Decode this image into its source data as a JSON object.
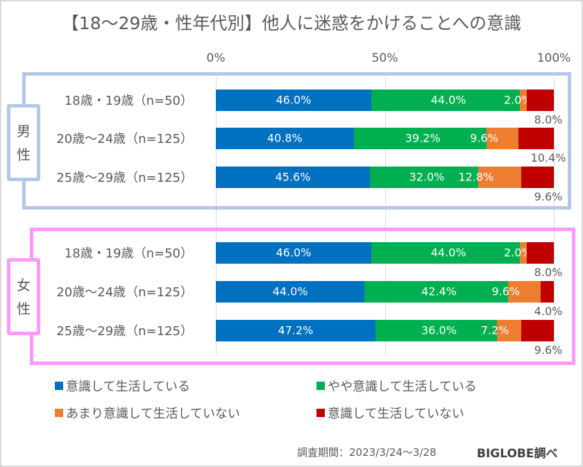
{
  "chart_data": {
    "type": "bar",
    "orientation": "horizontal",
    "stacked": "100%",
    "title": "【18～29歳・性年代別】他人に迷惑をかけることへの意識",
    "xlabel": "",
    "ylabel": "",
    "xlim": [
      0,
      100
    ],
    "x_ticks": [
      "0%",
      "50%",
      "100%"
    ],
    "grid": true,
    "legend_position": "bottom",
    "groups": [
      {
        "name": "男性",
        "label_chars": [
          "男",
          "性"
        ],
        "color": "#b4c7e7"
      },
      {
        "name": "女性",
        "label_chars": [
          "女",
          "性"
        ],
        "color": "#ff99ff"
      }
    ],
    "categories": [
      {
        "group": 0,
        "label": "18歳・19歳（n=50）"
      },
      {
        "group": 0,
        "label": "20歳～24歳（n=125）"
      },
      {
        "group": 0,
        "label": "25歳～29歳（n=125）"
      },
      {
        "group": 1,
        "label": "18歳・19歳（n=50）"
      },
      {
        "group": 1,
        "label": "20歳～24歳（n=125）"
      },
      {
        "group": 1,
        "label": "25歳～29歳（n=125）"
      }
    ],
    "series": [
      {
        "name": "意識して生活している",
        "color": "#0070c0",
        "values": [
          46.0,
          40.8,
          45.6,
          46.0,
          44.0,
          47.2
        ]
      },
      {
        "name": "やや意識して生活している",
        "color": "#00b050",
        "values": [
          44.0,
          39.2,
          32.0,
          44.0,
          42.4,
          36.0
        ]
      },
      {
        "name": "あまり意識して生活していない",
        "color": "#ed7d31",
        "values": [
          2.0,
          9.6,
          12.8,
          2.0,
          9.6,
          7.2
        ]
      },
      {
        "name": "意識して生活していない",
        "color": "#c00000",
        "values": [
          8.0,
          10.4,
          9.6,
          8.0,
          4.0,
          9.6
        ]
      }
    ],
    "value_labels": [
      [
        "46.0%",
        "44.0%",
        "2.0%",
        "8.0%"
      ],
      [
        "40.8%",
        "39.2%",
        "9.6%",
        "10.4%"
      ],
      [
        "45.6%",
        "32.0%",
        "12.8%",
        "9.6%"
      ],
      [
        "46.0%",
        "44.0%",
        "2.0%",
        "8.0%"
      ],
      [
        "44.0%",
        "42.4%",
        "9.6%",
        "4.0%"
      ],
      [
        "47.2%",
        "36.0%",
        "7.2%",
        "9.6%"
      ]
    ]
  },
  "footer": {
    "period": "調査期間：2023/3/24～3/28",
    "source": "BIGLOBE調べ"
  }
}
